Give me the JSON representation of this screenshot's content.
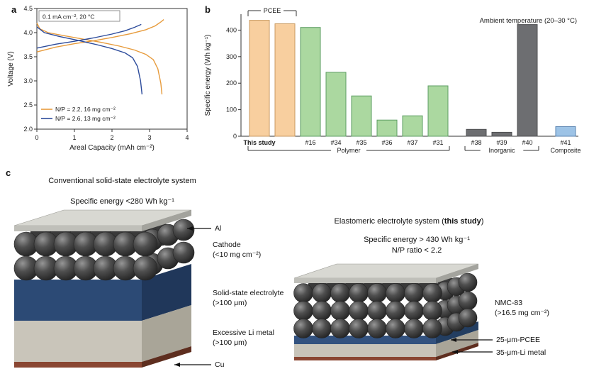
{
  "panels": {
    "a": "a",
    "b": "b",
    "c": "c"
  },
  "chart_data": [
    {
      "id": "voltage_capacity",
      "type": "line",
      "annotation": "0.1 mA cm⁻², 20 °C",
      "xlabel": "Areal Capacity (mAh cm⁻²)",
      "ylabel": "Voltage (V)",
      "xlim": [
        0,
        4
      ],
      "ylim": [
        2.0,
        4.5
      ],
      "xticks": [
        "0",
        "1",
        "2",
        "3",
        "4"
      ],
      "yticks": [
        "2.0",
        "2.5",
        "3.0",
        "3.5",
        "4.0",
        "4.5"
      ],
      "legend_position": "lower-left",
      "grid": false,
      "series": [
        {
          "name": "N/P = 2.2, 16 mg cm⁻²",
          "color": "#E79B3C",
          "charge": [
            [
              0,
              3.6
            ],
            [
              0.5,
              3.7
            ],
            [
              1,
              3.77
            ],
            [
              1.5,
              3.83
            ],
            [
              2,
              3.9
            ],
            [
              2.5,
              3.98
            ],
            [
              2.9,
              4.06
            ],
            [
              3.15,
              4.14
            ],
            [
              3.3,
              4.22
            ],
            [
              3.38,
              4.27
            ]
          ],
          "discharge": [
            [
              0,
              4.2
            ],
            [
              0.08,
              4.08
            ],
            [
              0.3,
              4.0
            ],
            [
              0.7,
              3.94
            ],
            [
              1.2,
              3.87
            ],
            [
              1.7,
              3.8
            ],
            [
              2.2,
              3.72
            ],
            [
              2.6,
              3.64
            ],
            [
              2.9,
              3.55
            ],
            [
              3.1,
              3.44
            ],
            [
              3.22,
              3.25
            ],
            [
              3.3,
              2.95
            ],
            [
              3.33,
              2.72
            ]
          ]
        },
        {
          "name": "N/P = 2.6, 13 mg cm⁻²",
          "color": "#2C4B9B",
          "charge": [
            [
              0,
              3.68
            ],
            [
              0.5,
              3.76
            ],
            [
              1,
              3.82
            ],
            [
              1.5,
              3.89
            ],
            [
              2,
              3.97
            ],
            [
              2.35,
              4.04
            ],
            [
              2.6,
              4.11
            ],
            [
              2.78,
              4.17
            ]
          ],
          "discharge": [
            [
              0,
              4.12
            ],
            [
              0.2,
              4.0
            ],
            [
              0.6,
              3.92
            ],
            [
              1.1,
              3.84
            ],
            [
              1.6,
              3.75
            ],
            [
              2.0,
              3.67
            ],
            [
              2.35,
              3.58
            ],
            [
              2.55,
              3.48
            ],
            [
              2.68,
              3.3
            ],
            [
              2.76,
              3.0
            ],
            [
              2.8,
              2.72
            ]
          ]
        }
      ]
    },
    {
      "id": "specific_energy",
      "type": "bar",
      "ylabel": "Specific energy (Wh kg⁻¹)",
      "annotation": "Ambient temperature (20–30 °C)",
      "bracket_label": "PCEE",
      "ylim": [
        0,
        460
      ],
      "yticks": [
        0,
        100,
        200,
        300,
        400
      ],
      "pcee_span": [
        0,
        1
      ],
      "bars": [
        {
          "label": "This study",
          "value": 437,
          "color": "#F8CF9F",
          "border": "#C99A60",
          "bold_label": true
        },
        {
          "label": "",
          "value": 424,
          "color": "#F8CF9F",
          "border": "#C99A60"
        },
        {
          "label": "#16",
          "value": 410,
          "color": "#ABD8A0",
          "border": "#5E9E63"
        },
        {
          "label": "#34",
          "value": 241,
          "color": "#ABD8A0",
          "border": "#5E9E63"
        },
        {
          "label": "#35",
          "value": 152,
          "color": "#ABD8A0",
          "border": "#5E9E63"
        },
        {
          "label": "#36",
          "value": 61,
          "color": "#ABD8A0",
          "border": "#5E9E63"
        },
        {
          "label": "#37",
          "value": 77,
          "color": "#ABD8A0",
          "border": "#5E9E63"
        },
        {
          "label": "#31",
          "value": 190,
          "color": "#ABD8A0",
          "border": "#5E9E63"
        },
        {
          "label": "#38",
          "value": 26,
          "color": "#6D6E71",
          "border": "#4D4E50",
          "gap_before": true
        },
        {
          "label": "#39",
          "value": 15,
          "color": "#6D6E71",
          "border": "#4D4E50"
        },
        {
          "label": "#40",
          "value": 421,
          "color": "#6D6E71",
          "border": "#4D4E50"
        },
        {
          "label": "#41",
          "value": 36,
          "color": "#9DC3E6",
          "border": "#5B84B1",
          "gap_before": true
        }
      ],
      "groups": [
        {
          "name": "Polymer",
          "from": 0,
          "to": 7,
          "bracket": true
        },
        {
          "name": "Inorganic",
          "from": 8,
          "to": 10,
          "bracket": true
        },
        {
          "name": "Composite",
          "from": 11,
          "to": 11,
          "bracket": false
        }
      ]
    }
  ],
  "panel_c": {
    "left": {
      "title": "Conventional solid-state electrolyte system",
      "subtitle": "Specific energy <280 Wh kg⁻¹",
      "label_al": "Al",
      "label_cathode_1": "Cathode",
      "label_cathode_2": "(<10 mg cm⁻²)",
      "label_electrolyte_1": "Solid-state electrolyte",
      "label_electrolyte_2": "(>100 μm)",
      "label_li_1": "Excessive Li metal",
      "label_li_2": "(>100 μm)",
      "label_cu": "Cu"
    },
    "right": {
      "title_prefix": "Elastomeric electrolyte system (",
      "title_bold": "this study",
      "title_suffix": ")",
      "subtitle_line1": "Specific energy > 430 Wh kg⁻¹",
      "subtitle_line2": "N/P ratio < 2.2",
      "label_nmc_1": "NMC-83",
      "label_nmc_2": "(>16.5 mg cm⁻²)",
      "label_pcee": "25-μm-PCEE",
      "label_li": "35-μm-Li metal"
    }
  }
}
